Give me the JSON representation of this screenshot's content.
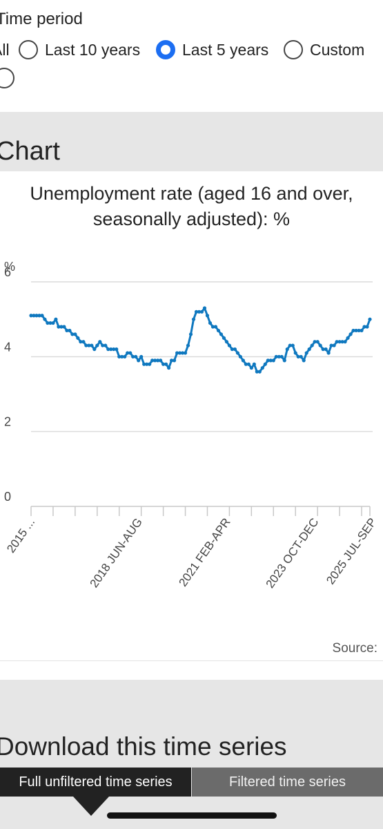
{
  "time_period": {
    "label": "Time period",
    "options": [
      {
        "label": "All",
        "checked": false
      },
      {
        "label": "Last 10 years",
        "checked": false
      },
      {
        "label": "Last 5 years",
        "checked": true
      },
      {
        "label": "Custom",
        "checked": false
      }
    ]
  },
  "chart_section": {
    "heading": "Chart",
    "source_label": "Source:"
  },
  "download": {
    "heading": "Download this time series",
    "tabs": [
      "Full unfiltered time series",
      "Filtered time series"
    ],
    "active_tab": 0
  },
  "colors": {
    "accent": "#1c6ef2",
    "series": "#0f78bf",
    "grid": "#dcdcdc"
  },
  "chart_data": {
    "type": "line",
    "title": "Unemployment rate (aged 16 and over, seasonally adjusted): %",
    "ylabel": "%",
    "ylim": [
      0,
      6
    ],
    "yticks": [
      0,
      2,
      4,
      6
    ],
    "grid": true,
    "x_tick_labels": [
      "2015 ...",
      "2018 JUN-AUG",
      "2021 FEB-APR",
      "2023 OCT-DEC",
      "2025 JUL-SEP"
    ],
    "x_tick_label_index": [
      0,
      39,
      71,
      103,
      124
    ],
    "series": [
      {
        "values": [
          5.1,
          5.1,
          5.1,
          5.1,
          5.1,
          5.0,
          4.9,
          4.9,
          4.9,
          5.0,
          4.8,
          4.8,
          4.8,
          4.7,
          4.7,
          4.6,
          4.6,
          4.5,
          4.4,
          4.4,
          4.3,
          4.3,
          4.3,
          4.2,
          4.3,
          4.4,
          4.3,
          4.3,
          4.2,
          4.2,
          4.2,
          4.2,
          4.0,
          4.0,
          4.0,
          4.1,
          4.1,
          4.0,
          4.0,
          3.9,
          4.0,
          3.8,
          3.8,
          3.8,
          3.9,
          3.9,
          3.9,
          3.9,
          3.8,
          3.8,
          3.7,
          3.9,
          3.9,
          4.1,
          4.1,
          4.1,
          4.1,
          4.3,
          4.6,
          5.0,
          5.2,
          5.2,
          5.2,
          5.3,
          5.1,
          4.9,
          4.8,
          4.8,
          4.7,
          4.6,
          4.5,
          4.4,
          4.3,
          4.2,
          4.2,
          4.1,
          4.0,
          3.9,
          3.8,
          3.8,
          3.7,
          3.8,
          3.6,
          3.6,
          3.7,
          3.8,
          3.9,
          3.9,
          3.9,
          4.0,
          4.0,
          4.0,
          3.9,
          4.2,
          4.3,
          4.3,
          4.1,
          4.0,
          4.0,
          3.9,
          4.1,
          4.2,
          4.3,
          4.4,
          4.4,
          4.3,
          4.2,
          4.2,
          4.1,
          4.3,
          4.3,
          4.4,
          4.4,
          4.4,
          4.4,
          4.5,
          4.6,
          4.7,
          4.7,
          4.7,
          4.7,
          4.8,
          4.8,
          5.0
        ]
      }
    ]
  }
}
